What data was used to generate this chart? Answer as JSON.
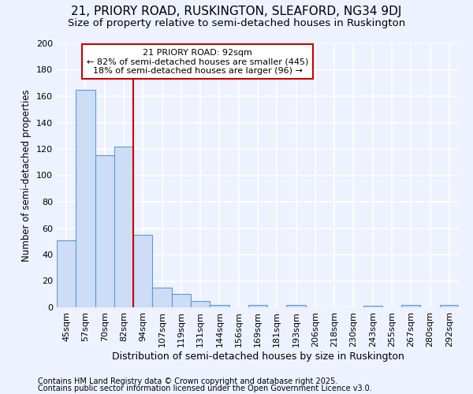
{
  "title": "21, PRIORY ROAD, RUSKINGTON, SLEAFORD, NG34 9DJ",
  "subtitle": "Size of property relative to semi-detached houses in Ruskington",
  "xlabel": "Distribution of semi-detached houses by size in Ruskington",
  "ylabel": "Number of semi-detached properties",
  "categories": [
    "45sqm",
    "57sqm",
    "70sqm",
    "82sqm",
    "94sqm",
    "107sqm",
    "119sqm",
    "131sqm",
    "144sqm",
    "156sqm",
    "169sqm",
    "181sqm",
    "193sqm",
    "206sqm",
    "218sqm",
    "230sqm",
    "243sqm",
    "255sqm",
    "267sqm",
    "280sqm",
    "292sqm"
  ],
  "values": [
    51,
    165,
    115,
    122,
    55,
    15,
    10,
    5,
    2,
    0,
    2,
    0,
    2,
    0,
    0,
    0,
    1,
    0,
    2,
    0,
    2
  ],
  "bar_color": "#ccddf5",
  "bar_edge_color": "#5b9bd5",
  "vline_index": 4,
  "vline_color": "#cc0000",
  "annotation_title": "21 PRIORY ROAD: 92sqm",
  "annotation_line1": "← 82% of semi-detached houses are smaller (445)",
  "annotation_line2": "18% of semi-detached houses are larger (96) →",
  "annotation_box_color": "#ffffff",
  "annotation_box_edge": "#cc0000",
  "footnote1": "Contains HM Land Registry data © Crown copyright and database right 2025.",
  "footnote2": "Contains public sector information licensed under the Open Government Licence v3.0.",
  "ylim": [
    0,
    200
  ],
  "yticks": [
    0,
    20,
    40,
    60,
    80,
    100,
    120,
    140,
    160,
    180,
    200
  ],
  "background_color": "#eef2ff",
  "grid_color": "#ffffff",
  "title_fontsize": 11,
  "subtitle_fontsize": 9.5,
  "tick_fontsize": 8,
  "ylabel_fontsize": 8.5,
  "xlabel_fontsize": 9,
  "footnote_fontsize": 7
}
